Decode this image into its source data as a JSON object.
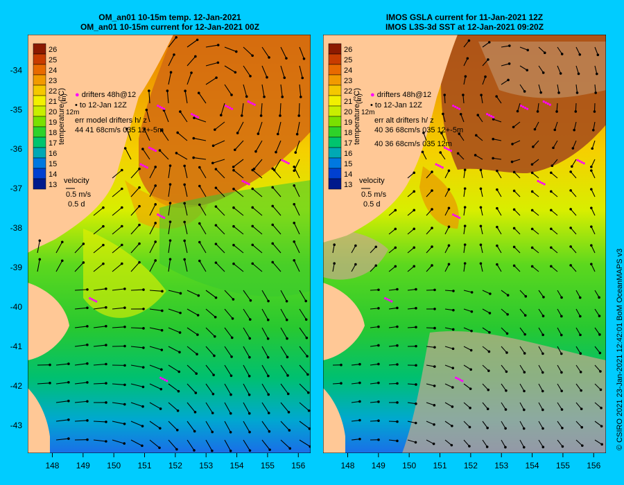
{
  "left_panel": {
    "title_line1": "OM_an01 10-15m temp. 12-Jan-2021",
    "title_line2": "OM_an01 10-15m current for 12-Jan-2021 00Z",
    "legend": {
      "drifters_line1": "drifters 48h@12",
      "drifters_line2": "to 12-Jan 12Z",
      "rotated_label": "(m)",
      "rotated_label2": "12m",
      "err_line1": "err model drifters h/ z",
      "err_line2": "44 41 68cm/s 035 12+-5m"
    }
  },
  "right_panel": {
    "title_line1": "IMOS GSLA current for 11-Jan-2021 12Z",
    "title_line2": "IMOS L3S-3d SST at 12-Jan-2021 09:20Z",
    "legend": {
      "drifters_line1": "drifters 48h@12",
      "drifters_line2": "to 12-Jan 12Z",
      "rotated_label": "(m)",
      "rotated_label2": "12m",
      "err_line1": "err alt drifters h/ z",
      "err_line2": "40 36 68cm/s 035 12+-5m",
      "err_line3": "40 36 68cm/s 035 12m"
    }
  },
  "colorbar": {
    "title": "temperature (°C)",
    "ticks": [
      "26",
      "25",
      "24",
      "23",
      "22",
      "21",
      "20",
      "19",
      "18",
      "17",
      "16",
      "15",
      "14",
      "13"
    ],
    "colors": [
      "#8c1a00",
      "#c83c00",
      "#e86a00",
      "#f29a00",
      "#f5c800",
      "#f2f000",
      "#c8ee00",
      "#7ae000",
      "#2ed22a",
      "#00c46e",
      "#00a8b4",
      "#0078e0",
      "#0040d0",
      "#001a8c"
    ]
  },
  "velocity_key": {
    "label": "velocity",
    "speed": "0.5 m/s",
    "duration": "0.5 d"
  },
  "axes": {
    "lat_ticks": [
      "-34",
      "-35",
      "-36",
      "-37",
      "-38",
      "-39",
      "-40",
      "-41",
      "-42",
      "-43"
    ],
    "lon_ticks": [
      "148",
      "149",
      "150",
      "151",
      "152",
      "153",
      "154",
      "155",
      "156"
    ],
    "lat_range": [
      -43.7,
      -33.1
    ],
    "lon_range": [
      147.2,
      156.4
    ]
  },
  "credit": "© CSIRO 2021   23-Jan-2021 12:42:01 BoM OceanMAPS v3",
  "colors": {
    "background": "#00ccff",
    "land": "#ffc896",
    "no_data": "#c8aa8c",
    "drifters": "#ff00ff",
    "vectors": "#000000"
  }
}
